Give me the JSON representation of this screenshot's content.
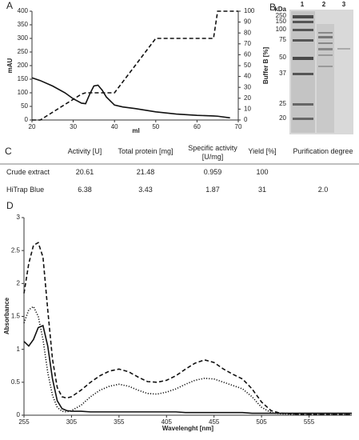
{
  "chart_data": [
    {
      "type": "line",
      "label": "A",
      "xlabel": "ml",
      "ylabel": "mAU",
      "y2label": "Buffer B [%]",
      "x": [
        20,
        22,
        25,
        28,
        30,
        32,
        33,
        34,
        35,
        36,
        37,
        38,
        40,
        42,
        45,
        50,
        55,
        60,
        64,
        65,
        68,
        70
      ],
      "xlim": [
        20,
        70
      ],
      "xticks": [
        20,
        30,
        40,
        50,
        60,
        70
      ],
      "ylim": [
        0,
        400
      ],
      "yticks": [
        0,
        50,
        100,
        150,
        200,
        250,
        300,
        350,
        400
      ],
      "y2lim": [
        0,
        100
      ],
      "y2ticks": [
        0,
        10,
        20,
        30,
        40,
        50,
        60,
        70,
        80,
        90,
        100
      ],
      "series": [
        {
          "color": "#111111",
          "style": "solid",
          "values": [
            155,
            145,
            125,
            100,
            78,
            62,
            60,
            95,
            125,
            128,
            110,
            85,
            55,
            48,
            42,
            30,
            22,
            17,
            15,
            14,
            8,
            null
          ]
        },
        {
          "color": "#111111",
          "style": "dashed",
          "axis": "y2",
          "values": [
            0,
            0,
            7.1,
            14.3,
            19,
            23.8,
            25,
            25,
            25,
            25,
            25,
            25,
            25,
            35,
            50,
            75,
            75,
            75,
            75,
            100,
            100,
            100
          ]
        }
      ]
    },
    {
      "type": "line",
      "label": "D",
      "xlabel": "Wavelenght [nm]",
      "ylabel": "Absorbance",
      "x": [
        255,
        260,
        265,
        270,
        275,
        280,
        285,
        290,
        295,
        300,
        305,
        315,
        325,
        335,
        345,
        355,
        365,
        375,
        385,
        395,
        405,
        415,
        425,
        435,
        445,
        455,
        465,
        475,
        485,
        495,
        505,
        515,
        525,
        550,
        600
      ],
      "xlim": [
        255,
        600
      ],
      "xticks": [
        255,
        305,
        355,
        405,
        455,
        505,
        555
      ],
      "ylim": [
        0,
        3
      ],
      "yticks": [
        0,
        0.5,
        1,
        1.5,
        2,
        2.5,
        3
      ],
      "series": [
        {
          "color": "#111111",
          "style": "dashed",
          "values": [
            1.85,
            2.3,
            2.58,
            2.62,
            2.4,
            1.6,
            0.85,
            0.42,
            0.28,
            0.26,
            0.28,
            0.38,
            0.5,
            0.6,
            0.67,
            0.7,
            0.66,
            0.58,
            0.51,
            0.5,
            0.53,
            0.6,
            0.7,
            0.79,
            0.84,
            0.8,
            0.7,
            0.62,
            0.55,
            0.4,
            0.2,
            0.07,
            0.03,
            0.01,
            0.01
          ]
        },
        {
          "color": "#111111",
          "style": "dotted",
          "values": [
            1.4,
            1.6,
            1.65,
            1.5,
            1.15,
            0.65,
            0.3,
            0.12,
            0.06,
            0.05,
            0.07,
            0.15,
            0.28,
            0.38,
            0.44,
            0.47,
            0.44,
            0.38,
            0.33,
            0.32,
            0.35,
            0.4,
            0.47,
            0.53,
            0.56,
            0.55,
            0.5,
            0.45,
            0.4,
            0.28,
            0.12,
            0.04,
            0.02,
            0.01,
            0.01
          ]
        },
        {
          "color": "#111111",
          "style": "solid",
          "values": [
            1.12,
            1.05,
            1.15,
            1.33,
            1.36,
            1.05,
            0.55,
            0.22,
            0.1,
            0.07,
            0.06,
            0.06,
            0.05,
            0.05,
            0.05,
            0.05,
            0.05,
            0.05,
            0.05,
            0.05,
            0.05,
            0.05,
            0.04,
            0.04,
            0.04,
            0.04,
            0.04,
            0.04,
            0.04,
            0.03,
            0.03,
            0.03,
            0.03,
            0.03,
            0.03
          ]
        }
      ]
    }
  ],
  "gel": {
    "label": "B",
    "unit": "kDa",
    "lanes": [
      "1",
      "2",
      "3"
    ],
    "markers": [
      "250",
      "150",
      "100",
      "75",
      "50",
      "37",
      "25",
      "20"
    ]
  },
  "table": {
    "label": "C",
    "header": [
      "Activity [U]",
      "Total protein [mg]",
      "Specific activity [U/mg]",
      "Yield [%]",
      "Purification degree"
    ],
    "rows": [
      [
        "Crude extract",
        "20.61",
        "21.48",
        "0.959",
        "100"
      ],
      [
        "HiTrap Blue",
        "6.38",
        "3.43",
        "1.87",
        "31",
        "2.0"
      ]
    ]
  }
}
